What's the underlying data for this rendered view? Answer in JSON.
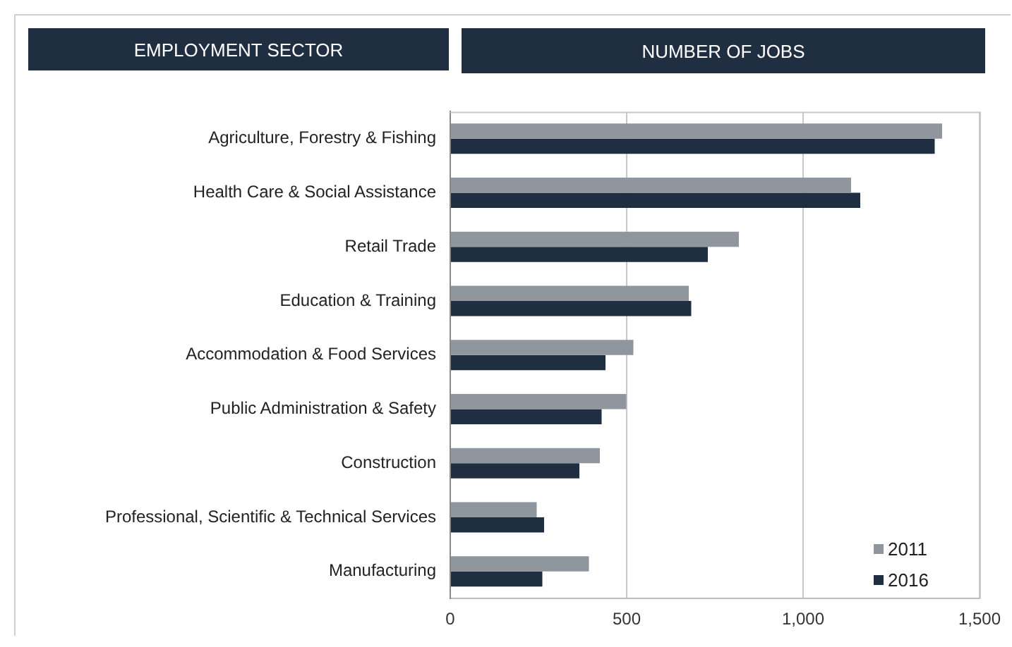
{
  "chart_data": {
    "type": "bar",
    "orientation": "horizontal",
    "ylabel": "EMPLOYMENT SECTOR",
    "xlabel": "NUMBER OF JOBS",
    "categories": [
      "Agriculture, Forestry & Fishing",
      "Health Care & Social Assistance",
      "Retail Trade",
      "Education & Training",
      "Accommodation & Food Services",
      "Public Administration & Safety",
      "Construction",
      "Professional, Scientific & Technical Services",
      "Manufacturing"
    ],
    "series": [
      {
        "name": "2011",
        "color": "#8f969e",
        "values": [
          1394,
          1136,
          818,
          676,
          519,
          499,
          424,
          245,
          393
        ]
      },
      {
        "name": "2016",
        "color": "#1f2e40",
        "values": [
          1373,
          1162,
          730,
          683,
          440,
          429,
          366,
          266,
          261
        ]
      }
    ],
    "xlim": [
      0,
      1500
    ],
    "xticks": [
      0,
      500,
      {
        "value": 1000,
        "label": "1,000"
      },
      {
        "value": 1500,
        "label": "1,500"
      }
    ],
    "grid": "x",
    "legend": "bottom right"
  }
}
